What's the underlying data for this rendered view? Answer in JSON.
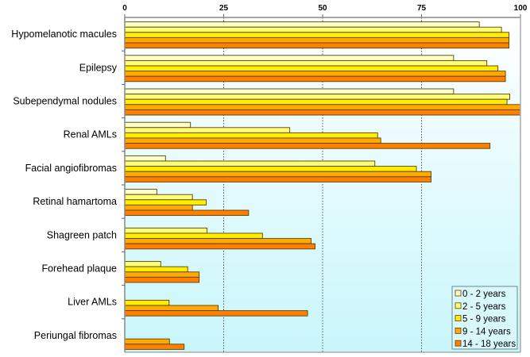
{
  "chart_data": {
    "type": "bar",
    "orientation": "horizontal",
    "categories": [
      "Hypomelanotic macules",
      "Epilepsy",
      "Subependymal nodules",
      "Renal AMLs",
      "Facial angiofibromas",
      "Retinal hamartoma",
      "Shagreen patch",
      "Forehead plaque",
      "Liver AMLs",
      "Periungal fibromas"
    ],
    "series": [
      {
        "name": "0 - 2 years",
        "color": "#ffffcc",
        "values": [
          89.6,
          83.1,
          83.1,
          16.6,
          10.3,
          8.1,
          0,
          0,
          0,
          0
        ]
      },
      {
        "name": "2 - 5 years",
        "color": "#ffff77",
        "values": [
          95.2,
          91.5,
          97.3,
          41.7,
          63.2,
          17.1,
          20.8,
          9.1,
          0,
          0
        ]
      },
      {
        "name": "5 - 9 years",
        "color": "#ffee00",
        "values": [
          97.1,
          94.3,
          96.6,
          63.9,
          73.7,
          20.6,
          34.8,
          15.9,
          11.2,
          0
        ]
      },
      {
        "name": "9 - 14 years",
        "color": "#ffaa00",
        "values": [
          97.1,
          96.2,
          100,
          64.7,
          77.4,
          17.1,
          47.1,
          18.8,
          23.6,
          11.3
        ]
      },
      {
        "name": "14 - 18 years",
        "color": "#ff8000",
        "values": [
          97.1,
          96.2,
          100,
          92.3,
          77.4,
          31.3,
          48.1,
          18.8,
          46.2,
          15.0
        ]
      }
    ],
    "xlim": [
      0,
      100
    ],
    "xticks": [
      "0",
      "25",
      "50",
      "75",
      "100"
    ],
    "xaxis_position": "top",
    "grid": "vertical dotted",
    "legend_position": "bottom-right",
    "title": "",
    "xlabel": "",
    "ylabel": ""
  }
}
